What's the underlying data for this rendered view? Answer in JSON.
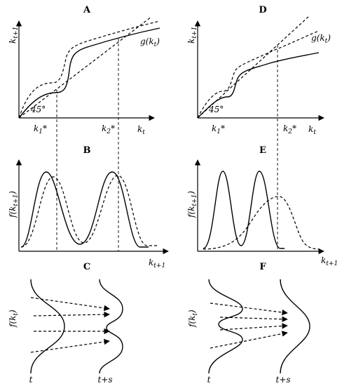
{
  "panels": {
    "A": {
      "title": "A",
      "ylabel": "k",
      "ylabel_sub": "t+1",
      "xlabel": "k",
      "xlabel_sub": "t",
      "curve": "g(k",
      "curve_sub": "t",
      "curve_end": ")",
      "angle": "45°",
      "k1": "k",
      "k1_sub": "1",
      "k1_star": "*",
      "k2": "k",
      "k2_sub": "2",
      "k2_star": "*"
    },
    "B": {
      "title": "B",
      "ylabel": "f(k",
      "ylabel_sub": "t+1",
      "ylabel_end": ")",
      "xlabel": "k",
      "xlabel_sub": "t+1"
    },
    "C": {
      "title": "C",
      "ylabel": "f(k",
      "ylabel_sub": "t",
      "ylabel_end": ")",
      "t_label": "t",
      "ts_label": "t+s"
    },
    "D": {
      "title": "D",
      "ylabel": "k",
      "ylabel_sub": "t+1",
      "xlabel": "k",
      "xlabel_sub": "t",
      "curve": "g(k",
      "curve_sub": "t",
      "curve_end": ")",
      "angle": "45°",
      "k1": "k",
      "k1_sub": "1",
      "k1_star": "*",
      "k2": "k",
      "k2_sub": "2",
      "k2_star": "*"
    },
    "E": {
      "title": "E",
      "ylabel": "f(k",
      "ylabel_sub": "t+1",
      "ylabel_end": ")",
      "xlabel": "k",
      "xlabel_sub": "t+1"
    },
    "F": {
      "title": "F",
      "ylabel": "f(k",
      "ylabel_sub": "t",
      "ylabel_end": ")",
      "t_label": "t",
      "ts_label": "t+s"
    }
  }
}
